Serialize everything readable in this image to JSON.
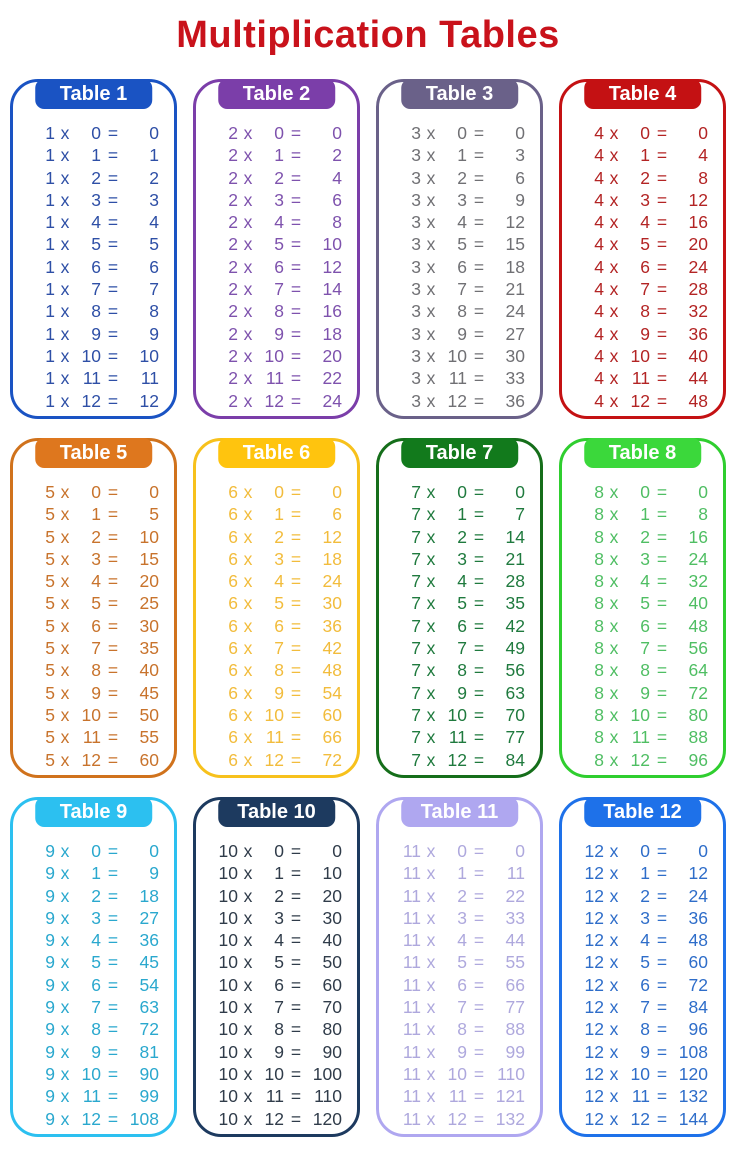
{
  "title": "Multiplication Tables",
  "title_color": "#C9121B",
  "header_text_color": "#FFFFFF",
  "symbols": {
    "times": "x",
    "equals": "="
  },
  "tables": [
    {
      "label": "Table 1",
      "header_bg": "#1A53C3",
      "border_color": "#1A53C3",
      "text_color": "#2E4FA6",
      "rows": [
        [
          "1",
          "0",
          "0"
        ],
        [
          "1",
          "1",
          "1"
        ],
        [
          "1",
          "2",
          "2"
        ],
        [
          "1",
          "3",
          "3"
        ],
        [
          "1",
          "4",
          "4"
        ],
        [
          "1",
          "5",
          "5"
        ],
        [
          "1",
          "6",
          "6"
        ],
        [
          "1",
          "7",
          "7"
        ],
        [
          "1",
          "8",
          "8"
        ],
        [
          "1",
          "9",
          "9"
        ],
        [
          "1",
          "10",
          "10"
        ],
        [
          "1",
          "11",
          "11"
        ],
        [
          "1",
          "12",
          "12"
        ]
      ]
    },
    {
      "label": "Table 2",
      "header_bg": "#7B3EA9",
      "border_color": "#7B3EA9",
      "text_color": "#7E52AD",
      "rows": [
        [
          "2",
          "0",
          "0"
        ],
        [
          "2",
          "1",
          "2"
        ],
        [
          "2",
          "2",
          "4"
        ],
        [
          "2",
          "3",
          "6"
        ],
        [
          "2",
          "4",
          "8"
        ],
        [
          "2",
          "5",
          "10"
        ],
        [
          "2",
          "6",
          "12"
        ],
        [
          "2",
          "7",
          "14"
        ],
        [
          "2",
          "8",
          "16"
        ],
        [
          "2",
          "9",
          "18"
        ],
        [
          "2",
          "10",
          "20"
        ],
        [
          "2",
          "11",
          "22"
        ],
        [
          "2",
          "12",
          "24"
        ]
      ]
    },
    {
      "label": "Table 3",
      "header_bg": "#6A6189",
      "border_color": "#6A6189",
      "text_color": "#707074",
      "rows": [
        [
          "3",
          "0",
          "0"
        ],
        [
          "3",
          "1",
          "3"
        ],
        [
          "3",
          "2",
          "6"
        ],
        [
          "3",
          "3",
          "9"
        ],
        [
          "3",
          "4",
          "12"
        ],
        [
          "3",
          "5",
          "15"
        ],
        [
          "3",
          "6",
          "18"
        ],
        [
          "3",
          "7",
          "21"
        ],
        [
          "3",
          "8",
          "24"
        ],
        [
          "3",
          "9",
          "27"
        ],
        [
          "3",
          "10",
          "30"
        ],
        [
          "3",
          "11",
          "33"
        ],
        [
          "3",
          "12",
          "36"
        ]
      ]
    },
    {
      "label": "Table 4",
      "header_bg": "#C41113",
      "border_color": "#C41113",
      "text_color": "#B32424",
      "rows": [
        [
          "4",
          "0",
          "0"
        ],
        [
          "4",
          "1",
          "4"
        ],
        [
          "4",
          "2",
          "8"
        ],
        [
          "4",
          "3",
          "12"
        ],
        [
          "4",
          "4",
          "16"
        ],
        [
          "4",
          "5",
          "20"
        ],
        [
          "4",
          "6",
          "24"
        ],
        [
          "4",
          "7",
          "28"
        ],
        [
          "4",
          "8",
          "32"
        ],
        [
          "4",
          "9",
          "36"
        ],
        [
          "4",
          "10",
          "40"
        ],
        [
          "4",
          "11",
          "44"
        ],
        [
          "4",
          "12",
          "48"
        ]
      ]
    },
    {
      "label": "Table 5",
      "header_bg": "#DE771E",
      "border_color": "#D0721C",
      "text_color": "#C8732C",
      "rows": [
        [
          "5",
          "0",
          "0"
        ],
        [
          "5",
          "1",
          "5"
        ],
        [
          "5",
          "2",
          "10"
        ],
        [
          "5",
          "3",
          "15"
        ],
        [
          "5",
          "4",
          "20"
        ],
        [
          "5",
          "5",
          "25"
        ],
        [
          "5",
          "6",
          "30"
        ],
        [
          "5",
          "7",
          "35"
        ],
        [
          "5",
          "8",
          "40"
        ],
        [
          "5",
          "9",
          "45"
        ],
        [
          "5",
          "10",
          "50"
        ],
        [
          "5",
          "11",
          "55"
        ],
        [
          "5",
          "12",
          "60"
        ]
      ]
    },
    {
      "label": "Table 6",
      "header_bg": "#FFC40E",
      "border_color": "#F7C11C",
      "text_color": "#F2BC3C",
      "rows": [
        [
          "6",
          "0",
          "0"
        ],
        [
          "6",
          "1",
          "6"
        ],
        [
          "6",
          "2",
          "12"
        ],
        [
          "6",
          "3",
          "18"
        ],
        [
          "6",
          "4",
          "24"
        ],
        [
          "6",
          "5",
          "30"
        ],
        [
          "6",
          "6",
          "36"
        ],
        [
          "6",
          "7",
          "42"
        ],
        [
          "6",
          "8",
          "48"
        ],
        [
          "6",
          "9",
          "54"
        ],
        [
          "6",
          "10",
          "60"
        ],
        [
          "6",
          "11",
          "66"
        ],
        [
          "6",
          "12",
          "72"
        ]
      ]
    },
    {
      "label": "Table 7",
      "header_bg": "#127A1C",
      "border_color": "#156E1A",
      "text_color": "#1F7A3E",
      "rows": [
        [
          "7",
          "0",
          "0"
        ],
        [
          "7",
          "1",
          "7"
        ],
        [
          "7",
          "2",
          "14"
        ],
        [
          "7",
          "3",
          "21"
        ],
        [
          "7",
          "4",
          "28"
        ],
        [
          "7",
          "5",
          "35"
        ],
        [
          "7",
          "6",
          "42"
        ],
        [
          "7",
          "7",
          "49"
        ],
        [
          "7",
          "8",
          "56"
        ],
        [
          "7",
          "9",
          "63"
        ],
        [
          "7",
          "10",
          "70"
        ],
        [
          "7",
          "11",
          "77"
        ],
        [
          "7",
          "12",
          "84"
        ]
      ]
    },
    {
      "label": "Table 8",
      "header_bg": "#3BD83B",
      "border_color": "#2FCE2F",
      "text_color": "#4FBE63",
      "rows": [
        [
          "8",
          "0",
          "0"
        ],
        [
          "8",
          "1",
          "8"
        ],
        [
          "8",
          "2",
          "16"
        ],
        [
          "8",
          "3",
          "24"
        ],
        [
          "8",
          "4",
          "32"
        ],
        [
          "8",
          "5",
          "40"
        ],
        [
          "8",
          "6",
          "48"
        ],
        [
          "8",
          "7",
          "56"
        ],
        [
          "8",
          "8",
          "64"
        ],
        [
          "8",
          "9",
          "72"
        ],
        [
          "8",
          "10",
          "80"
        ],
        [
          "8",
          "11",
          "88"
        ],
        [
          "8",
          "12",
          "96"
        ]
      ]
    },
    {
      "label": "Table 9",
      "header_bg": "#2CC0F0",
      "border_color": "#2CC0F0",
      "text_color": "#2AA8CE",
      "rows": [
        [
          "9",
          "0",
          "0"
        ],
        [
          "9",
          "1",
          "9"
        ],
        [
          "9",
          "2",
          "18"
        ],
        [
          "9",
          "3",
          "27"
        ],
        [
          "9",
          "4",
          "36"
        ],
        [
          "9",
          "5",
          "45"
        ],
        [
          "9",
          "6",
          "54"
        ],
        [
          "9",
          "7",
          "63"
        ],
        [
          "9",
          "8",
          "72"
        ],
        [
          "9",
          "9",
          "81"
        ],
        [
          "9",
          "10",
          "90"
        ],
        [
          "9",
          "11",
          "99"
        ],
        [
          "9",
          "12",
          "108"
        ]
      ]
    },
    {
      "label": "Table 10",
      "header_bg": "#1D3A5F",
      "border_color": "#1D3A5F",
      "text_color": "#303C4A",
      "rows": [
        [
          "10",
          "0",
          "0"
        ],
        [
          "10",
          "1",
          "10"
        ],
        [
          "10",
          "2",
          "20"
        ],
        [
          "10",
          "3",
          "30"
        ],
        [
          "10",
          "4",
          "40"
        ],
        [
          "10",
          "5",
          "50"
        ],
        [
          "10",
          "6",
          "60"
        ],
        [
          "10",
          "7",
          "70"
        ],
        [
          "10",
          "8",
          "80"
        ],
        [
          "10",
          "9",
          "90"
        ],
        [
          "10",
          "10",
          "100"
        ],
        [
          "10",
          "11",
          "110"
        ],
        [
          "10",
          "12",
          "120"
        ]
      ]
    },
    {
      "label": "Table 11",
      "header_bg": "#AFA7F0",
      "border_color": "#AFA7F0",
      "text_color": "#AEA8DD",
      "rows": [
        [
          "11",
          "0",
          "0"
        ],
        [
          "11",
          "1",
          "11"
        ],
        [
          "11",
          "2",
          "22"
        ],
        [
          "11",
          "3",
          "33"
        ],
        [
          "11",
          "4",
          "44"
        ],
        [
          "11",
          "5",
          "55"
        ],
        [
          "11",
          "6",
          "66"
        ],
        [
          "11",
          "7",
          "77"
        ],
        [
          "11",
          "8",
          "88"
        ],
        [
          "11",
          "9",
          "99"
        ],
        [
          "11",
          "10",
          "110"
        ],
        [
          "11",
          "11",
          "121"
        ],
        [
          "11",
          "12",
          "132"
        ]
      ]
    },
    {
      "label": "Table 12",
      "header_bg": "#1E71E9",
      "border_color": "#1E71E9",
      "text_color": "#2E6DC9",
      "rows": [
        [
          "12",
          "0",
          "0"
        ],
        [
          "12",
          "1",
          "12"
        ],
        [
          "12",
          "2",
          "24"
        ],
        [
          "12",
          "3",
          "36"
        ],
        [
          "12",
          "4",
          "48"
        ],
        [
          "12",
          "5",
          "60"
        ],
        [
          "12",
          "6",
          "72"
        ],
        [
          "12",
          "7",
          "84"
        ],
        [
          "12",
          "8",
          "96"
        ],
        [
          "12",
          "9",
          "108"
        ],
        [
          "12",
          "10",
          "120"
        ],
        [
          "12",
          "11",
          "132"
        ],
        [
          "12",
          "12",
          "144"
        ]
      ]
    }
  ]
}
